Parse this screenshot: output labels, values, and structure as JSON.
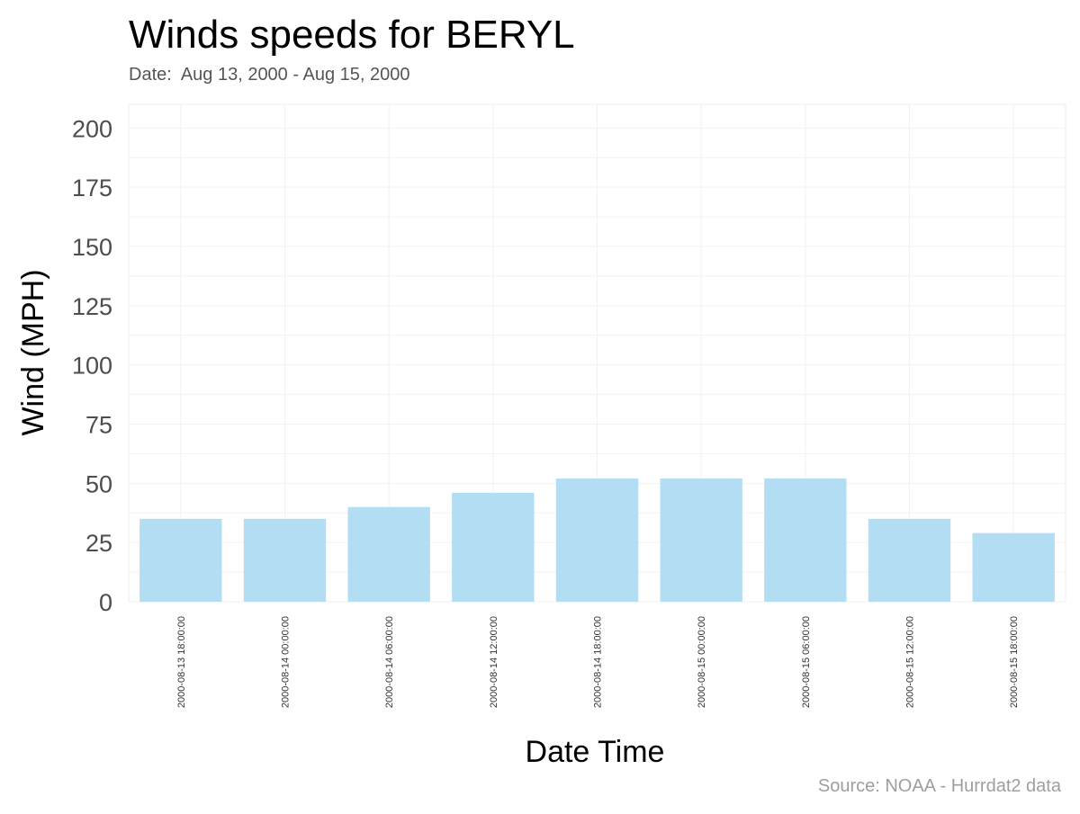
{
  "chart_data": {
    "type": "bar",
    "title": "Winds speeds for BERYL",
    "subtitle": "Date:  Aug 13, 2000 - Aug 15, 2000",
    "xlabel": "Date Time",
    "ylabel": "Wind (MPH)",
    "caption": "Source: NOAA - Hurrdat2 data",
    "categories": [
      "2000-08-13 18:00:00",
      "2000-08-14 00:00:00",
      "2000-08-14 06:00:00",
      "2000-08-14 12:00:00",
      "2000-08-14 18:00:00",
      "2000-08-15 00:00:00",
      "2000-08-15 06:00:00",
      "2000-08-15 12:00:00",
      "2000-08-15 18:00:00"
    ],
    "values": [
      35,
      35,
      40,
      46,
      52,
      52,
      52,
      35,
      29
    ],
    "ylim": [
      0,
      210
    ],
    "yticks": [
      0,
      25,
      50,
      75,
      100,
      125,
      150,
      175,
      200
    ],
    "grid": true,
    "legend": "none",
    "colors": {
      "bar": "#b3ddf3",
      "grid": "#f2f2f2",
      "panel_border": "#ececec",
      "title": "#000000",
      "subtitle": "#555555",
      "tick_label": "#4d4d4d",
      "caption": "#9e9e9e"
    }
  }
}
